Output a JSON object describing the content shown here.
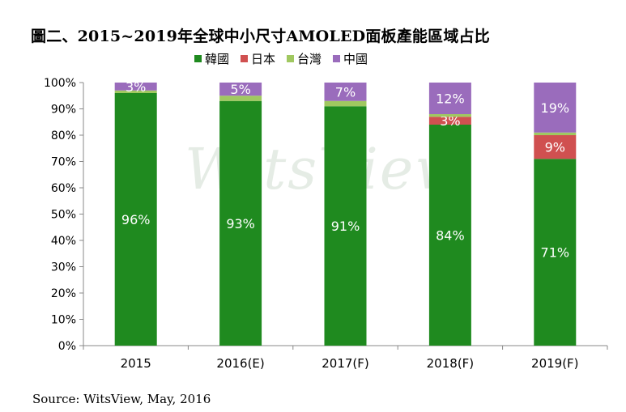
{
  "title": "圖二、2015~2019年全球中小尺寸AMOLED面板產能區域占比",
  "source": "Source: WitsView, May, 2016",
  "watermark": "WitsView",
  "colors": {
    "korea": "#1f8a1f",
    "japan": "#d05050",
    "taiwan": "#a0c860",
    "china": "#9a6cbc"
  },
  "chart_data": {
    "type": "bar",
    "stacked": true,
    "categories": [
      "2015",
      "2016(E)",
      "2017(F)",
      "2018(F)",
      "2019(F)"
    ],
    "series": [
      {
        "name": "韓國",
        "color_key": "korea",
        "values": [
          96,
          93,
          91,
          84,
          71
        ],
        "labels": [
          "96%",
          "93%",
          "91%",
          "84%",
          "71%"
        ]
      },
      {
        "name": "日本",
        "color_key": "japan",
        "values": [
          0,
          0,
          0,
          3,
          9
        ],
        "labels": [
          "",
          "",
          "",
          "3%",
          "9%"
        ]
      },
      {
        "name": "台灣",
        "color_key": "taiwan",
        "values": [
          1,
          2,
          2,
          1,
          1
        ],
        "labels": [
          "",
          "",
          "",
          "",
          ""
        ]
      },
      {
        "name": "中國",
        "color_key": "china",
        "values": [
          3,
          5,
          7,
          12,
          19
        ],
        "labels": [
          "3%",
          "5%",
          "7%",
          "12%",
          "19%"
        ]
      }
    ],
    "ylim": [
      0,
      100
    ],
    "yticks": [
      "0%",
      "10%",
      "20%",
      "30%",
      "40%",
      "50%",
      "60%",
      "70%",
      "80%",
      "90%",
      "100%"
    ],
    "legend_position": "top",
    "grid": false
  }
}
